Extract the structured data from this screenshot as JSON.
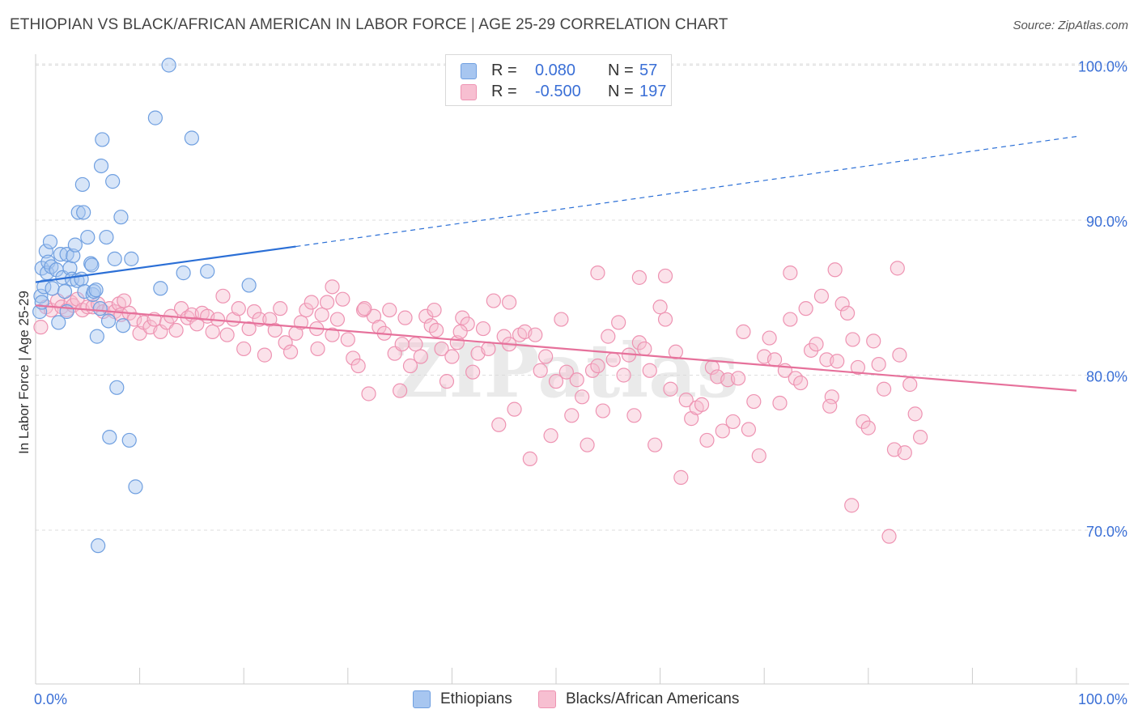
{
  "title": "ETHIOPIAN VS BLACK/AFRICAN AMERICAN IN LABOR FORCE | AGE 25-29 CORRELATION CHART",
  "source": "Source: ZipAtlas.com",
  "watermark": "ZIPatlas",
  "legend": {
    "rows": [
      {
        "r_label": "R =",
        "r_value": "0.080",
        "n_label": "N =",
        "n_value": "57",
        "color": "#a7c6f0",
        "border": "#6f9fe0"
      },
      {
        "r_label": "R =",
        "r_value": "-0.500",
        "n_label": "N =",
        "n_value": "197",
        "color": "#f7bfd1",
        "border": "#ee93b2"
      }
    ]
  },
  "bottom_legend": [
    {
      "label": "Ethiopians",
      "color": "#a7c6f0",
      "border": "#6f9fe0"
    },
    {
      "label": "Blacks/African Americans",
      "color": "#f7bfd1",
      "border": "#ee93b2"
    }
  ],
  "chart_data": {
    "type": "scatter",
    "title": "ETHIOPIAN VS BLACK/AFRICAN AMERICAN IN LABOR FORCE | AGE 25-29 CORRELATION CHART",
    "xlabel": "",
    "ylabel": "In Labor Force | Age 25-29",
    "xlim": [
      0,
      100
    ],
    "ylim": [
      61,
      102
    ],
    "x_tick_labels": [
      "0.0%",
      "100.0%"
    ],
    "y_ticks": [
      70,
      80,
      90,
      100
    ],
    "y_tick_labels": [
      "70.0%",
      "80.0%",
      "90.0%",
      "100.0%"
    ],
    "grid": true,
    "legend_position": "top-center",
    "series": [
      {
        "name": "Ethiopians",
        "color": "#6f9fe0",
        "fill": "#a7c6f0",
        "trend": {
          "x0": 0,
          "y0": 86.0,
          "x1": 25,
          "y1": 88.3,
          "dash_to_x": 100,
          "dash_to_y": 95.4,
          "color": "#2b6fd6"
        },
        "points": [
          [
            0.4,
            84.1
          ],
          [
            0.5,
            85.1
          ],
          [
            0.6,
            86.9
          ],
          [
            0.6,
            84.7
          ],
          [
            0.8,
            85.7
          ],
          [
            1.0,
            88.0
          ],
          [
            1.1,
            86.6
          ],
          [
            1.2,
            87.3
          ],
          [
            1.4,
            88.6
          ],
          [
            1.5,
            87.0
          ],
          [
            1.6,
            85.6
          ],
          [
            2.0,
            86.8
          ],
          [
            2.2,
            83.4
          ],
          [
            2.4,
            87.8
          ],
          [
            2.6,
            86.3
          ],
          [
            2.8,
            85.4
          ],
          [
            3.0,
            87.8
          ],
          [
            3.0,
            84.1
          ],
          [
            3.3,
            86.9
          ],
          [
            3.5,
            86.2
          ],
          [
            3.6,
            87.7
          ],
          [
            3.8,
            88.4
          ],
          [
            4.0,
            86.1
          ],
          [
            4.1,
            90.5
          ],
          [
            4.4,
            86.2
          ],
          [
            4.5,
            92.3
          ],
          [
            4.6,
            90.5
          ],
          [
            4.7,
            85.4
          ],
          [
            5.0,
            88.9
          ],
          [
            5.3,
            87.2
          ],
          [
            5.4,
            87.1
          ],
          [
            5.5,
            85.2
          ],
          [
            5.6,
            85.4
          ],
          [
            5.8,
            85.5
          ],
          [
            5.9,
            82.5
          ],
          [
            6.0,
            69.0
          ],
          [
            6.2,
            84.3
          ],
          [
            6.3,
            93.5
          ],
          [
            6.4,
            95.2
          ],
          [
            6.8,
            88.9
          ],
          [
            7.0,
            83.5
          ],
          [
            7.1,
            76.0
          ],
          [
            7.4,
            92.5
          ],
          [
            7.6,
            87.5
          ],
          [
            7.8,
            79.2
          ],
          [
            8.2,
            90.2
          ],
          [
            8.4,
            83.2
          ],
          [
            9.0,
            75.8
          ],
          [
            9.2,
            87.5
          ],
          [
            9.6,
            72.8
          ],
          [
            11.5,
            96.6
          ],
          [
            12.0,
            85.6
          ],
          [
            12.8,
            100.0
          ],
          [
            14.2,
            86.6
          ],
          [
            15.0,
            95.3
          ],
          [
            16.5,
            86.7
          ],
          [
            20.5,
            85.8
          ]
        ]
      },
      {
        "name": "Blacks/African Americans",
        "color": "#ee93b2",
        "fill": "#f7bfd1",
        "trend": {
          "x0": 0,
          "y0": 84.5,
          "x1": 100,
          "y1": 79.0,
          "color": "#e6719b"
        },
        "points": [
          [
            0.5,
            83.1
          ],
          [
            1.0,
            84.4
          ],
          [
            1.5,
            84.2
          ],
          [
            2.1,
            84.8
          ],
          [
            2.5,
            84.4
          ],
          [
            3.0,
            84.2
          ],
          [
            3.4,
            84.7
          ],
          [
            3.6,
            84.5
          ],
          [
            4.0,
            84.9
          ],
          [
            4.5,
            84.2
          ],
          [
            5.0,
            84.4
          ],
          [
            5.5,
            84.4
          ],
          [
            6.0,
            84.6
          ],
          [
            6.5,
            84.1
          ],
          [
            7.1,
            84.3
          ],
          [
            7.6,
            84.1
          ],
          [
            8.0,
            84.6
          ],
          [
            8.2,
            83.9
          ],
          [
            8.5,
            84.8
          ],
          [
            9.0,
            84.0
          ],
          [
            9.5,
            83.6
          ],
          [
            10.0,
            82.7
          ],
          [
            10.4,
            83.4
          ],
          [
            11.0,
            83.1
          ],
          [
            11.4,
            83.6
          ],
          [
            12.0,
            82.8
          ],
          [
            12.6,
            83.4
          ],
          [
            13.0,
            83.8
          ],
          [
            13.5,
            82.9
          ],
          [
            14.0,
            84.3
          ],
          [
            14.6,
            83.7
          ],
          [
            15.0,
            83.9
          ],
          [
            15.5,
            83.3
          ],
          [
            16.0,
            84.0
          ],
          [
            16.5,
            83.8
          ],
          [
            17.0,
            82.8
          ],
          [
            17.5,
            83.6
          ],
          [
            18.0,
            85.1
          ],
          [
            18.4,
            82.6
          ],
          [
            19.0,
            83.6
          ],
          [
            19.5,
            84.3
          ],
          [
            20.0,
            81.7
          ],
          [
            20.5,
            83.0
          ],
          [
            21.0,
            84.1
          ],
          [
            21.5,
            83.6
          ],
          [
            22.0,
            81.3
          ],
          [
            22.5,
            83.6
          ],
          [
            23.0,
            82.9
          ],
          [
            23.5,
            84.3
          ],
          [
            24.0,
            82.1
          ],
          [
            24.5,
            81.5
          ],
          [
            25.0,
            82.7
          ],
          [
            25.5,
            83.4
          ],
          [
            26.0,
            84.2
          ],
          [
            26.5,
            84.7
          ],
          [
            27.0,
            83.0
          ],
          [
            27.5,
            83.9
          ],
          [
            28.0,
            84.7
          ],
          [
            28.5,
            82.6
          ],
          [
            29.0,
            83.6
          ],
          [
            29.5,
            84.9
          ],
          [
            30.0,
            82.3
          ],
          [
            30.5,
            81.1
          ],
          [
            31.0,
            80.6
          ],
          [
            31.5,
            84.2
          ],
          [
            32.0,
            78.8
          ],
          [
            32.5,
            83.8
          ],
          [
            33.0,
            83.1
          ],
          [
            33.5,
            82.7
          ],
          [
            34.0,
            84.2
          ],
          [
            34.5,
            81.4
          ],
          [
            35.0,
            79.0
          ],
          [
            35.5,
            83.7
          ],
          [
            36.0,
            80.6
          ],
          [
            36.5,
            82.0
          ],
          [
            37.0,
            81.2
          ],
          [
            37.5,
            83.8
          ],
          [
            38.0,
            83.2
          ],
          [
            38.5,
            82.9
          ],
          [
            39.0,
            81.7
          ],
          [
            39.5,
            79.6
          ],
          [
            40.0,
            81.2
          ],
          [
            40.5,
            82.1
          ],
          [
            41.0,
            83.7
          ],
          [
            41.5,
            83.3
          ],
          [
            42.0,
            80.2
          ],
          [
            42.5,
            81.4
          ],
          [
            43.0,
            83.0
          ],
          [
            43.5,
            81.7
          ],
          [
            44.0,
            84.8
          ],
          [
            44.5,
            76.8
          ],
          [
            45.0,
            82.5
          ],
          [
            45.5,
            82.0
          ],
          [
            46.0,
            77.8
          ],
          [
            46.5,
            82.6
          ],
          [
            47.0,
            82.8
          ],
          [
            47.5,
            74.6
          ],
          [
            48.0,
            82.6
          ],
          [
            48.5,
            80.3
          ],
          [
            49.0,
            81.2
          ],
          [
            49.5,
            76.1
          ],
          [
            50.0,
            79.6
          ],
          [
            50.5,
            83.6
          ],
          [
            51.0,
            80.2
          ],
          [
            51.5,
            77.4
          ],
          [
            52.0,
            79.7
          ],
          [
            52.5,
            78.6
          ],
          [
            53.0,
            75.5
          ],
          [
            53.5,
            80.3
          ],
          [
            54.0,
            80.6
          ],
          [
            54.5,
            77.7
          ],
          [
            55.0,
            82.5
          ],
          [
            55.5,
            81.0
          ],
          [
            56.0,
            83.4
          ],
          [
            56.5,
            80.0
          ],
          [
            57.0,
            81.3
          ],
          [
            57.5,
            77.4
          ],
          [
            58.0,
            82.1
          ],
          [
            58.5,
            81.7
          ],
          [
            59.0,
            80.3
          ],
          [
            59.5,
            75.5
          ],
          [
            60.0,
            84.4
          ],
          [
            60.5,
            83.6
          ],
          [
            61.0,
            79.1
          ],
          [
            61.5,
            81.5
          ],
          [
            62.0,
            73.4
          ],
          [
            62.5,
            78.4
          ],
          [
            63.0,
            77.2
          ],
          [
            63.5,
            77.9
          ],
          [
            64.0,
            78.1
          ],
          [
            64.5,
            75.8
          ],
          [
            65.0,
            80.5
          ],
          [
            65.5,
            79.9
          ],
          [
            66.0,
            76.4
          ],
          [
            66.5,
            79.7
          ],
          [
            67.0,
            77.0
          ],
          [
            67.5,
            79.8
          ],
          [
            68.0,
            82.8
          ],
          [
            68.5,
            76.5
          ],
          [
            69.0,
            78.3
          ],
          [
            69.5,
            74.8
          ],
          [
            70.0,
            81.2
          ],
          [
            70.5,
            82.4
          ],
          [
            71.0,
            81.0
          ],
          [
            71.5,
            78.2
          ],
          [
            72.0,
            80.3
          ],
          [
            72.5,
            83.6
          ],
          [
            73.0,
            79.8
          ],
          [
            73.5,
            79.5
          ],
          [
            74.0,
            84.3
          ],
          [
            74.5,
            81.6
          ],
          [
            75.0,
            82.0
          ],
          [
            75.5,
            85.1
          ],
          [
            76.0,
            81.0
          ],
          [
            76.5,
            78.6
          ],
          [
            77.0,
            80.9
          ],
          [
            77.5,
            84.6
          ],
          [
            78.0,
            84.0
          ],
          [
            78.5,
            82.3
          ],
          [
            79.0,
            80.5
          ],
          [
            79.5,
            77.0
          ],
          [
            80.0,
            76.6
          ],
          [
            80.5,
            82.2
          ],
          [
            81.0,
            80.7
          ],
          [
            81.5,
            79.1
          ],
          [
            82.0,
            69.6
          ],
          [
            82.5,
            75.2
          ],
          [
            83.0,
            81.3
          ],
          [
            83.5,
            75.0
          ],
          [
            84.0,
            79.4
          ],
          [
            84.5,
            77.5
          ],
          [
            85.0,
            76.0
          ],
          [
            72.5,
            86.6
          ],
          [
            76.8,
            86.8
          ],
          [
            82.8,
            86.9
          ],
          [
            76.3,
            78.0
          ],
          [
            78.4,
            71.6
          ],
          [
            60.5,
            86.4
          ],
          [
            58.0,
            86.3
          ],
          [
            54.0,
            86.6
          ],
          [
            45.5,
            84.7
          ],
          [
            38.3,
            84.2
          ],
          [
            28.5,
            85.7
          ],
          [
            31.6,
            84.3
          ],
          [
            35.2,
            82.0
          ],
          [
            40.8,
            82.8
          ],
          [
            27.1,
            81.7
          ]
        ]
      }
    ]
  }
}
